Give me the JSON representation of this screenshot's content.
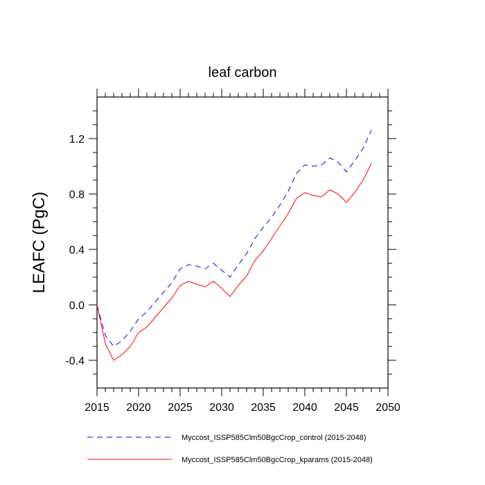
{
  "chart_data": {
    "type": "line",
    "title": "leaf carbon",
    "xlabel": "",
    "ylabel": "LEAFC  (PgC)",
    "xlim": [
      2015,
      2050
    ],
    "ylim": [
      -0.6,
      1.5
    ],
    "xticks": [
      2015,
      2020,
      2025,
      2030,
      2035,
      2040,
      2045,
      2050
    ],
    "xtick_labels": [
      "2015",
      "2020",
      "2025",
      "2030",
      "2035",
      "2040",
      "2045",
      "2050"
    ],
    "yticks": [
      -0.4,
      0.0,
      0.4,
      0.8,
      1.2
    ],
    "ytick_labels": [
      "-0.4",
      "0.0",
      "0.4",
      "0.8",
      "1.2"
    ],
    "grid": false,
    "legend_position": "bottom",
    "x": [
      2015,
      2016,
      2017,
      2018,
      2019,
      2020,
      2021,
      2022,
      2023,
      2024,
      2025,
      2026,
      2027,
      2028,
      2029,
      2030,
      2031,
      2032,
      2033,
      2034,
      2035,
      2036,
      2037,
      2038,
      2039,
      2040,
      2041,
      2042,
      2043,
      2044,
      2045,
      2046,
      2047,
      2048
    ],
    "series": [
      {
        "name": "Myccost_ISSP585Clm50BgcCrop_control (2015-2048)",
        "color": "#0000ff",
        "dash": "dashed",
        "values": [
          0.0,
          -0.22,
          -0.3,
          -0.26,
          -0.19,
          -0.1,
          -0.05,
          0.02,
          0.09,
          0.16,
          0.26,
          0.29,
          0.28,
          0.26,
          0.3,
          0.25,
          0.2,
          0.29,
          0.37,
          0.48,
          0.56,
          0.63,
          0.72,
          0.82,
          0.95,
          1.01,
          1.0,
          1.01,
          1.06,
          1.03,
          0.96,
          1.04,
          1.13,
          1.26
        ]
      },
      {
        "name": "Myccost_ISSP585Clm50BgcCrop_kparams (2015-2048)",
        "color": "#ff0000",
        "dash": "solid",
        "values": [
          0.0,
          -0.28,
          -0.4,
          -0.36,
          -0.3,
          -0.2,
          -0.16,
          -0.09,
          -0.02,
          0.05,
          0.14,
          0.17,
          0.15,
          0.13,
          0.17,
          0.12,
          0.06,
          0.14,
          0.21,
          0.32,
          0.39,
          0.48,
          0.57,
          0.66,
          0.77,
          0.81,
          0.79,
          0.78,
          0.83,
          0.8,
          0.74,
          0.81,
          0.9,
          1.02
        ]
      }
    ]
  }
}
